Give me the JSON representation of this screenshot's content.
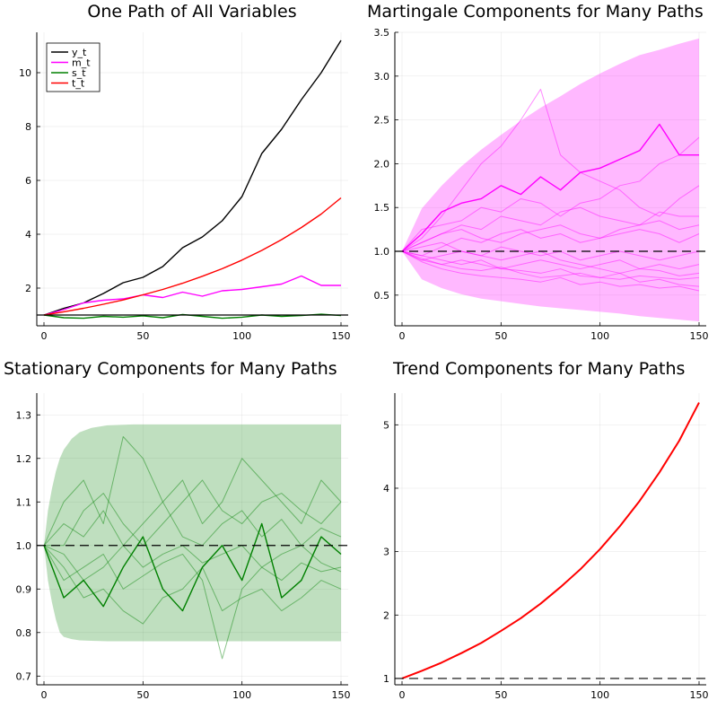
{
  "chart_data": [
    {
      "type": "line",
      "title": "One Path of All Variables",
      "xlabel": "",
      "ylabel": "",
      "xlim": [
        0,
        150
      ],
      "ylim": [
        0.6,
        11.5
      ],
      "xticks": [
        0,
        50,
        100,
        150
      ],
      "yticks": [
        2,
        4,
        6,
        8,
        10
      ],
      "grid": true,
      "legend_position": "top-left",
      "series": [
        {
          "name": "y_t",
          "color": "#000000",
          "x": [
            0,
            10,
            20,
            30,
            40,
            50,
            60,
            70,
            80,
            90,
            100,
            110,
            120,
            130,
            140,
            150
          ],
          "values": [
            1.0,
            1.25,
            1.45,
            1.8,
            2.2,
            2.4,
            2.8,
            3.5,
            3.9,
            4.5,
            5.4,
            7.0,
            7.9,
            9.0,
            10.0,
            11.2
          ]
        },
        {
          "name": "m_t",
          "color": "#ff00ff",
          "x": [
            0,
            10,
            20,
            30,
            40,
            50,
            60,
            70,
            80,
            90,
            100,
            110,
            120,
            130,
            140,
            150
          ],
          "values": [
            1.0,
            1.2,
            1.45,
            1.55,
            1.6,
            1.75,
            1.65,
            1.85,
            1.7,
            1.9,
            1.95,
            2.05,
            2.15,
            2.45,
            2.1,
            2.1
          ]
        },
        {
          "name": "s_t",
          "color": "#008000",
          "x": [
            0,
            10,
            20,
            30,
            40,
            50,
            60,
            70,
            80,
            90,
            100,
            110,
            120,
            130,
            140,
            150
          ],
          "values": [
            1.0,
            0.9,
            0.88,
            0.95,
            0.92,
            0.97,
            0.9,
            1.02,
            0.95,
            0.88,
            0.92,
            1.0,
            0.95,
            0.98,
            1.03,
            0.98
          ]
        },
        {
          "name": "t_t",
          "color": "#ff0000",
          "x": [
            0,
            10,
            20,
            30,
            40,
            50,
            60,
            70,
            80,
            90,
            100,
            110,
            120,
            130,
            140,
            150
          ],
          "values": [
            1.0,
            1.12,
            1.25,
            1.4,
            1.56,
            1.75,
            1.95,
            2.18,
            2.44,
            2.72,
            3.04,
            3.4,
            3.8,
            4.25,
            4.75,
            5.35
          ]
        }
      ]
    },
    {
      "type": "line",
      "title": "Martingale Components for Many Paths",
      "xlabel": "",
      "ylabel": "",
      "xlim": [
        0,
        150
      ],
      "ylim": [
        0.15,
        3.5
      ],
      "xticks": [
        0,
        50,
        100,
        150
      ],
      "yticks": [
        0.5,
        1.0,
        1.5,
        2.0,
        2.5,
        3.0,
        3.5
      ],
      "grid": true,
      "band": {
        "color": "#ff00ff",
        "x": [
          0,
          10,
          20,
          30,
          40,
          50,
          60,
          70,
          80,
          90,
          100,
          110,
          120,
          130,
          140,
          150
        ],
        "upper": [
          1.0,
          1.49,
          1.75,
          1.97,
          2.16,
          2.33,
          2.49,
          2.64,
          2.77,
          2.91,
          3.03,
          3.14,
          3.24,
          3.3,
          3.37,
          3.43
        ],
        "lower": [
          1.0,
          0.68,
          0.58,
          0.51,
          0.46,
          0.43,
          0.4,
          0.37,
          0.35,
          0.33,
          0.31,
          0.29,
          0.26,
          0.24,
          0.22,
          0.2
        ]
      },
      "reference_line": 1.0,
      "series": [
        {
          "color": "#ff00ff",
          "x": [
            0,
            10,
            20,
            30,
            40,
            50,
            60,
            70,
            80,
            90,
            100,
            110,
            120,
            130,
            140,
            150
          ],
          "values": [
            1.0,
            1.2,
            1.45,
            1.55,
            1.6,
            1.75,
            1.65,
            1.85,
            1.7,
            1.9,
            1.95,
            2.05,
            2.15,
            2.45,
            2.1,
            2.1
          ]
        },
        {
          "color": "#ff00ff",
          "x": [
            0,
            10,
            20,
            30,
            40,
            50,
            60,
            70,
            80,
            90,
            100,
            110,
            120,
            130,
            140,
            150
          ],
          "values": [
            1.0,
            1.15,
            1.4,
            1.7,
            2.0,
            2.2,
            2.5,
            2.85,
            2.1,
            1.9,
            1.8,
            1.7,
            1.5,
            1.4,
            1.6,
            1.75
          ]
        },
        {
          "color": "#ff00ff",
          "x": [
            0,
            10,
            20,
            30,
            40,
            50,
            60,
            70,
            80,
            90,
            100,
            110,
            120,
            130,
            140,
            150
          ],
          "values": [
            1.0,
            1.25,
            1.3,
            1.35,
            1.5,
            1.45,
            1.6,
            1.55,
            1.4,
            1.55,
            1.6,
            1.75,
            1.8,
            2.0,
            2.1,
            2.3
          ]
        },
        {
          "color": "#ff00ff",
          "x": [
            0,
            10,
            20,
            30,
            40,
            50,
            60,
            70,
            80,
            90,
            100,
            110,
            120,
            130,
            140,
            150
          ],
          "values": [
            1.0,
            1.1,
            1.2,
            1.3,
            1.25,
            1.4,
            1.35,
            1.3,
            1.45,
            1.5,
            1.4,
            1.35,
            1.3,
            1.45,
            1.4,
            1.4
          ]
        },
        {
          "color": "#ff00ff",
          "x": [
            0,
            10,
            20,
            30,
            40,
            50,
            60,
            70,
            80,
            90,
            100,
            110,
            120,
            130,
            140,
            150
          ],
          "values": [
            1.0,
            0.95,
            1.05,
            1.15,
            1.1,
            1.2,
            1.25,
            1.15,
            1.2,
            1.1,
            1.15,
            1.2,
            1.25,
            1.2,
            1.1,
            1.2
          ]
        },
        {
          "color": "#ff00ff",
          "x": [
            0,
            10,
            20,
            30,
            40,
            50,
            60,
            70,
            80,
            90,
            100,
            110,
            120,
            130,
            140,
            150
          ],
          "values": [
            1.0,
            0.9,
            0.95,
            1.0,
            0.95,
            1.05,
            1.0,
            0.95,
            1.0,
            0.9,
            0.95,
            1.0,
            0.95,
            0.9,
            0.95,
            1.0
          ]
        },
        {
          "color": "#ff00ff",
          "x": [
            0,
            10,
            20,
            30,
            40,
            50,
            60,
            70,
            80,
            90,
            100,
            110,
            120,
            130,
            140,
            150
          ],
          "values": [
            1.0,
            0.9,
            0.85,
            0.9,
            0.85,
            0.8,
            0.85,
            0.9,
            0.85,
            0.8,
            0.85,
            0.9,
            0.8,
            0.85,
            0.8,
            0.85
          ]
        },
        {
          "color": "#ff00ff",
          "x": [
            0,
            10,
            20,
            30,
            40,
            50,
            60,
            70,
            80,
            90,
            100,
            110,
            120,
            130,
            140,
            150
          ],
          "values": [
            1.0,
            0.92,
            0.85,
            0.8,
            0.78,
            0.82,
            0.75,
            0.7,
            0.72,
            0.75,
            0.7,
            0.68,
            0.72,
            0.7,
            0.68,
            0.7
          ]
        },
        {
          "color": "#ff00ff",
          "x": [
            0,
            10,
            20,
            30,
            40,
            50,
            60,
            70,
            80,
            90,
            100,
            110,
            120,
            130,
            140,
            150
          ],
          "values": [
            1.0,
            0.88,
            0.8,
            0.75,
            0.72,
            0.7,
            0.68,
            0.65,
            0.7,
            0.62,
            0.65,
            0.6,
            0.62,
            0.58,
            0.6,
            0.55
          ]
        },
        {
          "color": "#ff00ff",
          "x": [
            0,
            10,
            20,
            30,
            40,
            50,
            60,
            70,
            80,
            90,
            100,
            110,
            120,
            130,
            140,
            150
          ],
          "values": [
            1.0,
            1.05,
            1.1,
            1.0,
            0.95,
            0.9,
            0.95,
            1.0,
            0.9,
            0.85,
            0.8,
            0.75,
            0.8,
            0.78,
            0.72,
            0.75
          ]
        },
        {
          "color": "#ff00ff",
          "x": [
            0,
            10,
            20,
            30,
            40,
            50,
            60,
            70,
            80,
            90,
            100,
            110,
            120,
            130,
            140,
            150
          ],
          "values": [
            1.0,
            1.1,
            1.2,
            1.25,
            1.15,
            1.1,
            1.2,
            1.25,
            1.3,
            1.2,
            1.15,
            1.25,
            1.3,
            1.35,
            1.25,
            1.3
          ]
        },
        {
          "color": "#ff00ff",
          "x": [
            0,
            10,
            20,
            30,
            40,
            50,
            60,
            70,
            80,
            90,
            100,
            110,
            120,
            130,
            140,
            150
          ],
          "values": [
            1.0,
            0.95,
            0.9,
            0.85,
            0.9,
            0.8,
            0.78,
            0.75,
            0.8,
            0.72,
            0.7,
            0.75,
            0.65,
            0.68,
            0.62,
            0.6
          ]
        }
      ]
    },
    {
      "type": "line",
      "title": "Stationary Components for Many Paths",
      "xlabel": "",
      "ylabel": "",
      "xlim": [
        0,
        150
      ],
      "ylim": [
        0.68,
        1.35
      ],
      "xticks": [
        0,
        50,
        100,
        150
      ],
      "yticks": [
        0.7,
        0.8,
        0.9,
        1.0,
        1.1,
        1.2,
        1.3
      ],
      "grid": true,
      "band": {
        "color": "#008000",
        "x": [
          0,
          2,
          4,
          6,
          8,
          10,
          14,
          18,
          24,
          32,
          45,
          60,
          80,
          100,
          120,
          150
        ],
        "upper": [
          1.0,
          1.08,
          1.13,
          1.17,
          1.2,
          1.22,
          1.245,
          1.26,
          1.27,
          1.276,
          1.278,
          1.278,
          1.278,
          1.278,
          1.278,
          1.278
        ],
        "lower": [
          1.0,
          0.92,
          0.87,
          0.83,
          0.8,
          0.79,
          0.785,
          0.782,
          0.781,
          0.78,
          0.78,
          0.78,
          0.78,
          0.78,
          0.78,
          0.78
        ]
      },
      "reference_line": 1.0,
      "series": [
        {
          "color": "#008000",
          "x": [
            0,
            10,
            20,
            30,
            40,
            50,
            60,
            70,
            80,
            90,
            100,
            110,
            120,
            130,
            140,
            150
          ],
          "values": [
            1.0,
            0.88,
            0.92,
            0.86,
            0.95,
            1.02,
            0.9,
            0.85,
            0.95,
            1.0,
            0.92,
            1.05,
            0.88,
            0.92,
            1.02,
            0.98
          ]
        },
        {
          "color": "#008000",
          "x": [
            0,
            10,
            20,
            30,
            40,
            50,
            60,
            70,
            80,
            90,
            100,
            110,
            120,
            130,
            140,
            150
          ],
          "values": [
            1.0,
            1.1,
            1.15,
            1.05,
            1.25,
            1.2,
            1.1,
            1.15,
            1.05,
            1.1,
            1.2,
            1.15,
            1.1,
            1.05,
            1.15,
            1.1
          ]
        },
        {
          "color": "#008000",
          "x": [
            0,
            10,
            20,
            30,
            40,
            50,
            60,
            70,
            80,
            90,
            100,
            110,
            120,
            130,
            140,
            150
          ],
          "values": [
            1.0,
            0.95,
            0.88,
            0.9,
            0.85,
            0.82,
            0.88,
            0.9,
            0.95,
            0.85,
            0.88,
            0.9,
            0.85,
            0.88,
            0.92,
            0.9
          ]
        },
        {
          "color": "#008000",
          "x": [
            0,
            10,
            20,
            30,
            40,
            50,
            60,
            70,
            80,
            90,
            100,
            110,
            120,
            130,
            140,
            150
          ],
          "values": [
            1.0,
            1.05,
            1.02,
            1.08,
            1.0,
            1.05,
            1.1,
            1.02,
            1.0,
            1.05,
            1.08,
            1.02,
            1.06,
            1.0,
            1.04,
            1.02
          ]
        },
        {
          "color": "#008000",
          "x": [
            0,
            10,
            20,
            30,
            40,
            50,
            60,
            70,
            80,
            90,
            100,
            110,
            120,
            130,
            140,
            150
          ],
          "values": [
            1.0,
            0.92,
            0.95,
            0.98,
            0.9,
            0.93,
            0.96,
            0.98,
            0.92,
            0.74,
            0.9,
            0.95,
            0.92,
            0.96,
            0.94,
            0.95
          ]
        },
        {
          "color": "#008000",
          "x": [
            0,
            10,
            20,
            30,
            40,
            50,
            60,
            70,
            80,
            90,
            100,
            110,
            120,
            130,
            140,
            150
          ],
          "values": [
            1.0,
            1.0,
            1.08,
            1.12,
            1.05,
            1.0,
            1.05,
            1.1,
            1.15,
            1.08,
            1.05,
            1.1,
            1.12,
            1.08,
            1.05,
            1.1
          ]
        },
        {
          "color": "#008000",
          "x": [
            0,
            10,
            20,
            30,
            40,
            50,
            60,
            70,
            80,
            90,
            100,
            110,
            120,
            130,
            140,
            150
          ],
          "values": [
            1.0,
            0.98,
            0.92,
            0.95,
            1.0,
            0.95,
            0.98,
            1.0,
            0.96,
            0.98,
            1.0,
            0.95,
            0.98,
            1.0,
            0.96,
            0.94
          ]
        }
      ]
    },
    {
      "type": "line",
      "title": "Trend Components for Many Paths",
      "xlabel": "",
      "ylabel": "",
      "xlim": [
        0,
        150
      ],
      "ylim": [
        0.9,
        5.5
      ],
      "xticks": [
        0,
        50,
        100,
        150
      ],
      "yticks": [
        1,
        2,
        3,
        4,
        5
      ],
      "grid": true,
      "reference_line": 1.0,
      "series": [
        {
          "color": "#ff0000",
          "x": [
            0,
            10,
            20,
            30,
            40,
            50,
            60,
            70,
            80,
            90,
            100,
            110,
            120,
            130,
            140,
            150
          ],
          "values": [
            1.0,
            1.12,
            1.25,
            1.4,
            1.56,
            1.75,
            1.95,
            2.18,
            2.44,
            2.72,
            3.04,
            3.4,
            3.8,
            4.25,
            4.75,
            5.35
          ]
        }
      ]
    }
  ]
}
